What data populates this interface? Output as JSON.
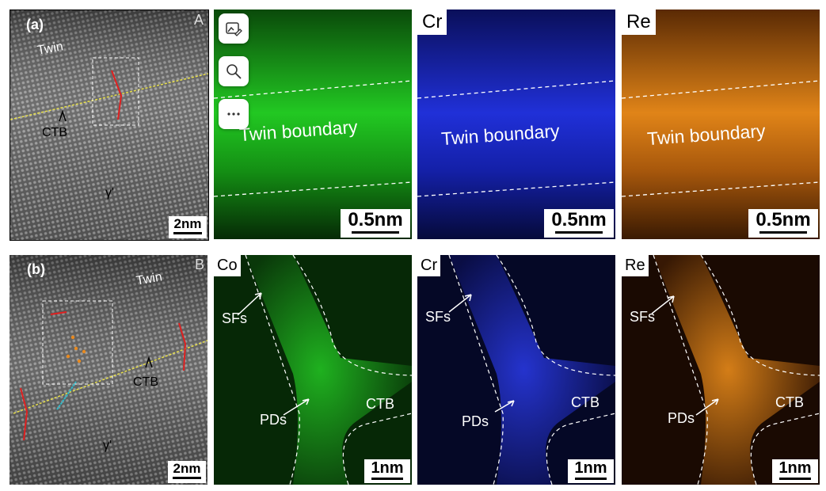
{
  "row_a": {
    "panel_label": "(a)",
    "corner_letter": "A",
    "twin": "Twin",
    "ctb": "CTB",
    "gamma": "γ'",
    "scale_stem": "2nm",
    "maps": [
      {
        "element": "",
        "text": "Twin boundary",
        "scale": "0.5nm",
        "color": "#1fbf1f"
      },
      {
        "element": "Cr",
        "text": "Twin boundary",
        "scale": "0.5nm",
        "color": "#1f2fe6"
      },
      {
        "element": "Re",
        "text": "Twin boundary",
        "scale": "0.5nm",
        "color": "#e07a12"
      }
    ]
  },
  "row_b": {
    "panel_label": "(b)",
    "corner_letter": "B",
    "twin": "Twin",
    "ctb": "CTB",
    "gamma": "γ'",
    "scale_stem": "2nm",
    "maps": [
      {
        "element": "Co",
        "sfs": "SFs",
        "pds": "PDs",
        "ctb": "CTB",
        "scale": "1nm",
        "color": "#1fbf1f"
      },
      {
        "element": "Cr",
        "sfs": "SFs",
        "pds": "PDs",
        "ctb": "CTB",
        "scale": "1nm",
        "color": "#1f2fe6"
      },
      {
        "element": "Re",
        "sfs": "SFs",
        "pds": "PDs",
        "ctb": "CTB",
        "scale": "1nm",
        "color": "#e07a12"
      }
    ]
  },
  "toolbar": {
    "items": [
      "image-edit-icon",
      "search-icon",
      "more-icon"
    ]
  }
}
